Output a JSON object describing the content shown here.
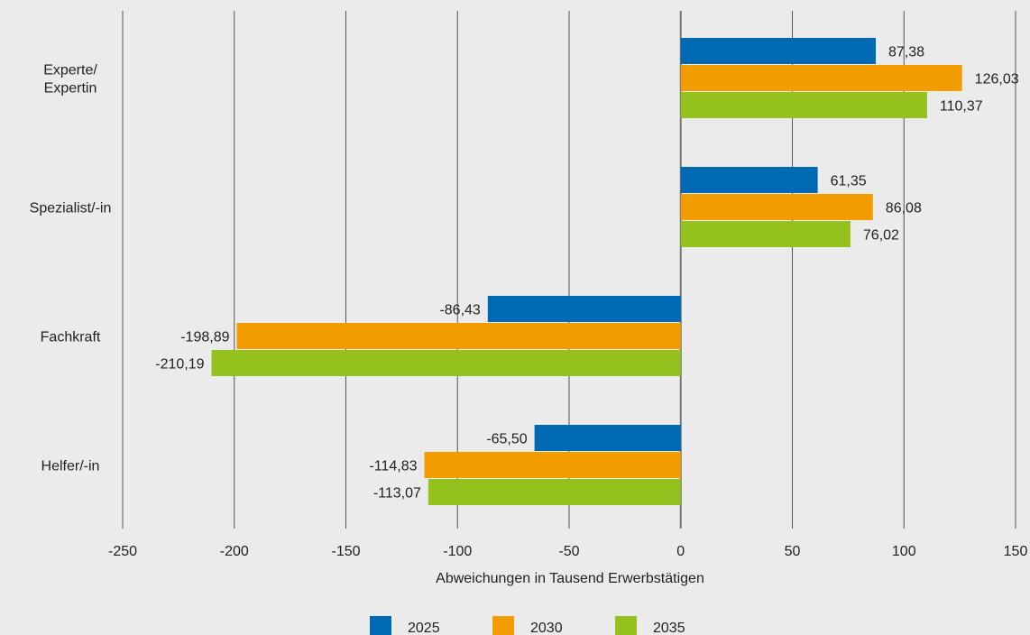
{
  "chart_data": {
    "type": "bar",
    "orientation": "horizontal",
    "categories": [
      "Experte/\nExpertin",
      "Spezialist/-in",
      "Fachkraft",
      "Helfer/-in"
    ],
    "series": [
      {
        "name": "2025",
        "color": "#0069b4",
        "values": [
          87.38,
          61.35,
          -86.43,
          -65.5
        ],
        "labels": [
          "87,38",
          "61,35",
          "-86,43",
          "-65,50"
        ]
      },
      {
        "name": "2030",
        "color": "#f39c00",
        "values": [
          126.03,
          86.08,
          -198.89,
          -114.83
        ],
        "labels": [
          "126,03",
          "86,08",
          "-198,89",
          "-114,83"
        ]
      },
      {
        "name": "2035",
        "color": "#95c11f",
        "values": [
          110.37,
          76.02,
          -210.19,
          -113.07
        ],
        "labels": [
          "110,37",
          "76,02",
          "-210,19",
          "-113,07"
        ]
      }
    ],
    "xlabel": "Abweichungen in Tausend Erwerbstätigen",
    "xlim": [
      -250,
      150
    ],
    "xticks": [
      -250,
      -200,
      -150,
      -100,
      -50,
      0,
      50,
      100,
      150
    ],
    "grid": true,
    "legend_position": "bottom"
  }
}
